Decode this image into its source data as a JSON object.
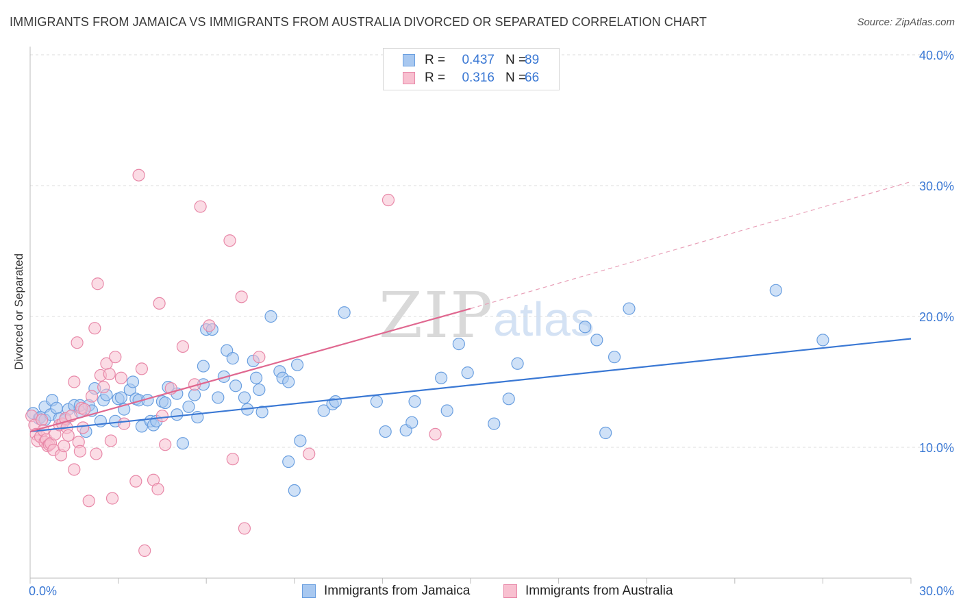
{
  "title": "IMMIGRANTS FROM JAMAICA VS IMMIGRANTS FROM AUSTRALIA DIVORCED OR SEPARATED CORRELATION CHART",
  "source": "Source: ZipAtlas.com",
  "watermark": {
    "zip": "ZIP",
    "atlas": "atlas"
  },
  "legend": {
    "r_label": "R =",
    "n_label": "N =",
    "rows": [
      {
        "r": "0.437",
        "n": "89",
        "fill": "#a8c8f0",
        "stroke": "#6a9fe0"
      },
      {
        "r": "0.316",
        "n": "66",
        "fill": "#f8c0d0",
        "stroke": "#e888a8"
      }
    ]
  },
  "bottom_legend": [
    {
      "label": "Immigrants from Jamaica",
      "fill": "#a8c8f0",
      "stroke": "#6a9fe0"
    },
    {
      "label": "Immigrants from Australia",
      "fill": "#f8c0d0",
      "stroke": "#e888a8"
    }
  ],
  "colors": {
    "blue": "#3a78d4",
    "pink": "#e06890",
    "axis_text": "#3a78d4"
  },
  "chart_data": {
    "type": "scatter",
    "title": "IMMIGRANTS FROM JAMAICA VS IMMIGRANTS FROM AUSTRALIA DIVORCED OR SEPARATED CORRELATION CHART",
    "xlabel": "",
    "ylabel": "Divorced or Separated",
    "xlim": [
      0,
      30
    ],
    "ylim": [
      0,
      40
    ],
    "x_tick_labels": [
      "0.0%",
      "30.0%"
    ],
    "y_tick_labels": [
      "10.0%",
      "20.0%",
      "30.0%",
      "40.0%"
    ],
    "y_ticks": [
      10,
      20,
      30,
      40
    ],
    "grid": true,
    "legend_position": "top-center",
    "series": [
      {
        "name": "Immigrants from Jamaica",
        "color": "#6a9fe0",
        "trend": {
          "x": [
            0,
            30
          ],
          "y": [
            11.2,
            18.3
          ],
          "style": "solid",
          "color": "#3a78d4"
        },
        "points": [
          [
            0.1,
            12.6
          ],
          [
            0.3,
            12.2
          ],
          [
            0.35,
            12.3
          ],
          [
            0.5,
            12.1
          ],
          [
            0.5,
            13.1
          ],
          [
            0.7,
            12.5
          ],
          [
            0.75,
            13.6
          ],
          [
            0.9,
            13.0
          ],
          [
            1.0,
            12.2
          ],
          [
            1.2,
            12.1
          ],
          [
            1.3,
            12.9
          ],
          [
            1.5,
            13.2
          ],
          [
            1.7,
            12.7
          ],
          [
            1.7,
            13.2
          ],
          [
            1.9,
            11.2
          ],
          [
            2.0,
            13.2
          ],
          [
            2.1,
            12.8
          ],
          [
            2.2,
            14.5
          ],
          [
            2.4,
            12.0
          ],
          [
            2.5,
            13.6
          ],
          [
            2.6,
            14.0
          ],
          [
            2.9,
            12.0
          ],
          [
            3.0,
            13.7
          ],
          [
            3.1,
            13.8
          ],
          [
            3.2,
            12.9
          ],
          [
            3.4,
            14.4
          ],
          [
            3.5,
            15.0
          ],
          [
            3.6,
            13.7
          ],
          [
            3.7,
            13.6
          ],
          [
            3.8,
            11.6
          ],
          [
            4.0,
            13.6
          ],
          [
            4.1,
            12.0
          ],
          [
            4.2,
            11.7
          ],
          [
            4.3,
            12.0
          ],
          [
            4.5,
            13.5
          ],
          [
            4.6,
            13.4
          ],
          [
            4.7,
            14.6
          ],
          [
            5.0,
            12.5
          ],
          [
            5.0,
            14.1
          ],
          [
            5.2,
            10.3
          ],
          [
            5.4,
            13.1
          ],
          [
            5.6,
            14.0
          ],
          [
            5.7,
            12.3
          ],
          [
            5.9,
            16.2
          ],
          [
            5.9,
            14.8
          ],
          [
            6.0,
            19.0
          ],
          [
            6.2,
            19.0
          ],
          [
            6.4,
            13.8
          ],
          [
            6.6,
            15.4
          ],
          [
            6.7,
            17.4
          ],
          [
            6.9,
            16.8
          ],
          [
            7.0,
            14.7
          ],
          [
            7.3,
            13.8
          ],
          [
            7.4,
            12.9
          ],
          [
            7.6,
            16.6
          ],
          [
            7.7,
            15.3
          ],
          [
            7.8,
            14.4
          ],
          [
            7.9,
            12.7
          ],
          [
            8.2,
            20.0
          ],
          [
            8.5,
            15.8
          ],
          [
            8.6,
            15.3
          ],
          [
            8.8,
            15.0
          ],
          [
            8.8,
            8.9
          ],
          [
            9.0,
            6.7
          ],
          [
            9.1,
            16.3
          ],
          [
            9.2,
            10.5
          ],
          [
            10.0,
            12.8
          ],
          [
            10.3,
            13.3
          ],
          [
            10.4,
            13.5
          ],
          [
            10.7,
            20.3
          ],
          [
            11.8,
            13.5
          ],
          [
            12.1,
            11.2
          ],
          [
            12.8,
            11.3
          ],
          [
            13.0,
            11.9
          ],
          [
            13.1,
            13.5
          ],
          [
            14.0,
            15.3
          ],
          [
            14.2,
            12.8
          ],
          [
            14.6,
            17.9
          ],
          [
            14.9,
            15.7
          ],
          [
            15.8,
            11.8
          ],
          [
            16.3,
            13.7
          ],
          [
            16.6,
            16.4
          ],
          [
            18.9,
            19.2
          ],
          [
            19.3,
            18.2
          ],
          [
            19.6,
            11.1
          ],
          [
            19.9,
            16.9
          ],
          [
            20.4,
            20.6
          ],
          [
            25.4,
            22.0
          ],
          [
            27.0,
            18.2
          ]
        ]
      },
      {
        "name": "Immigrants from Australia",
        "color": "#e888a8",
        "trend": {
          "x": [
            0,
            15
          ],
          "y": [
            11.2,
            20.6
          ],
          "style": "solid",
          "dashed_extension": {
            "x": [
              15,
              30
            ],
            "y": [
              20.6,
              30.3
            ]
          },
          "color": "#e06890"
        },
        "points": [
          [
            0.05,
            12.4
          ],
          [
            0.15,
            11.7
          ],
          [
            0.2,
            11.0
          ],
          [
            0.25,
            10.5
          ],
          [
            0.35,
            10.8
          ],
          [
            0.4,
            12.1
          ],
          [
            0.45,
            11.3
          ],
          [
            0.5,
            10.4
          ],
          [
            0.55,
            10.6
          ],
          [
            0.6,
            10.1
          ],
          [
            0.65,
            10.2
          ],
          [
            0.7,
            10.3
          ],
          [
            0.8,
            9.8
          ],
          [
            0.85,
            11.0
          ],
          [
            1.0,
            11.7
          ],
          [
            1.05,
            9.4
          ],
          [
            1.1,
            11.8
          ],
          [
            1.15,
            10.1
          ],
          [
            1.2,
            12.2
          ],
          [
            1.25,
            11.5
          ],
          [
            1.3,
            10.9
          ],
          [
            1.4,
            12.4
          ],
          [
            1.5,
            8.3
          ],
          [
            1.5,
            15.0
          ],
          [
            1.6,
            18.0
          ],
          [
            1.65,
            10.4
          ],
          [
            1.7,
            9.7
          ],
          [
            1.75,
            13.0
          ],
          [
            1.8,
            11.5
          ],
          [
            1.85,
            12.9
          ],
          [
            2.0,
            5.9
          ],
          [
            2.1,
            13.9
          ],
          [
            2.2,
            19.1
          ],
          [
            2.25,
            9.5
          ],
          [
            2.3,
            22.5
          ],
          [
            2.4,
            15.5
          ],
          [
            2.5,
            14.6
          ],
          [
            2.6,
            16.4
          ],
          [
            2.7,
            15.6
          ],
          [
            2.75,
            10.5
          ],
          [
            2.8,
            6.1
          ],
          [
            2.9,
            16.9
          ],
          [
            3.1,
            15.3
          ],
          [
            3.2,
            11.8
          ],
          [
            3.6,
            7.4
          ],
          [
            3.7,
            30.8
          ],
          [
            3.8,
            16.0
          ],
          [
            3.9,
            2.1
          ],
          [
            4.2,
            7.5
          ],
          [
            4.35,
            6.8
          ],
          [
            4.4,
            21.0
          ],
          [
            4.5,
            12.4
          ],
          [
            4.6,
            10.2
          ],
          [
            4.8,
            14.5
          ],
          [
            5.2,
            17.7
          ],
          [
            5.6,
            14.8
          ],
          [
            5.8,
            28.4
          ],
          [
            6.1,
            19.3
          ],
          [
            6.8,
            25.8
          ],
          [
            6.9,
            9.1
          ],
          [
            7.2,
            21.5
          ],
          [
            7.3,
            3.8
          ],
          [
            7.8,
            16.9
          ],
          [
            9.5,
            9.5
          ],
          [
            12.2,
            28.9
          ],
          [
            13.8,
            11.0
          ]
        ]
      }
    ]
  }
}
